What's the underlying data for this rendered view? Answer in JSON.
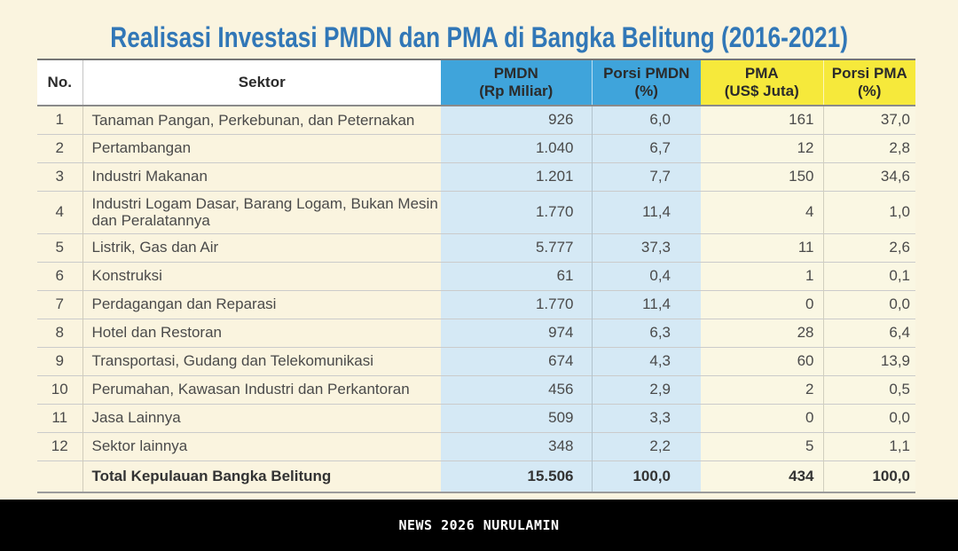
{
  "title": "Realisasi Investasi PMDN dan PMA di Bangka Belitung (2016-2021)",
  "chart_data": {
    "type": "table",
    "columns": [
      {
        "label": "No."
      },
      {
        "label": "Sektor"
      },
      {
        "label": "PMDN",
        "sub": "(Rp Miliar)"
      },
      {
        "label": "Porsi PMDN",
        "sub": "(%)"
      },
      {
        "label": "PMA",
        "sub": "(US$ Juta)"
      },
      {
        "label": "Porsi PMA",
        "sub": "(%)"
      }
    ],
    "rows": [
      {
        "no": "1",
        "sektor": "Tanaman Pangan, Perkebunan, dan Peternakan",
        "pmdn": "926",
        "porsi_pmdn": "6,0",
        "pma": "161",
        "porsi_pma": "37,0"
      },
      {
        "no": "2",
        "sektor": "Pertambangan",
        "pmdn": "1.040",
        "porsi_pmdn": "6,7",
        "pma": "12",
        "porsi_pma": "2,8"
      },
      {
        "no": "3",
        "sektor": "Industri Makanan",
        "pmdn": "1.201",
        "porsi_pmdn": "7,7",
        "pma": "150",
        "porsi_pma": "34,6"
      },
      {
        "no": "4",
        "sektor": "Industri Logam Dasar, Barang Logam, Bukan Mesin dan Peralatannya",
        "pmdn": "1.770",
        "porsi_pmdn": "11,4",
        "pma": "4",
        "porsi_pma": "1,0"
      },
      {
        "no": "5",
        "sektor": "Listrik, Gas dan Air",
        "pmdn": "5.777",
        "porsi_pmdn": "37,3",
        "pma": "11",
        "porsi_pma": "2,6"
      },
      {
        "no": "6",
        "sektor": "Konstruksi",
        "pmdn": "61",
        "porsi_pmdn": "0,4",
        "pma": "1",
        "porsi_pma": "0,1"
      },
      {
        "no": "7",
        "sektor": "Perdagangan dan Reparasi",
        "pmdn": "1.770",
        "porsi_pmdn": "11,4",
        "pma": "0",
        "porsi_pma": "0,0"
      },
      {
        "no": "8",
        "sektor": "Hotel dan Restoran",
        "pmdn": "974",
        "porsi_pmdn": "6,3",
        "pma": "28",
        "porsi_pma": "6,4"
      },
      {
        "no": "9",
        "sektor": "Transportasi, Gudang dan Telekomunikasi",
        "pmdn": "674",
        "porsi_pmdn": "4,3",
        "pma": "60",
        "porsi_pma": "13,9"
      },
      {
        "no": "10",
        "sektor": "Perumahan, Kawasan Industri dan Perkantoran",
        "pmdn": "456",
        "porsi_pmdn": "2,9",
        "pma": "2",
        "porsi_pma": "0,5"
      },
      {
        "no": "11",
        "sektor": "Jasa Lainnya",
        "pmdn": "509",
        "porsi_pmdn": "3,3",
        "pma": "0",
        "porsi_pma": "0,0"
      },
      {
        "no": "12",
        "sektor": "Sektor lainnya",
        "pmdn": "348",
        "porsi_pmdn": "2,2",
        "pma": "5",
        "porsi_pma": "1,1"
      }
    ],
    "total": {
      "sektor": "Total Kepulauan Bangka Belitung",
      "pmdn": "15.506",
      "porsi_pmdn": "100,0",
      "pma": "434",
      "porsi_pma": "100,0"
    }
  },
  "footer": {
    "text": "NEWS 2026 NURULAMIN"
  },
  "colors": {
    "page_bg": "#FAF4DF",
    "title_blue": "#3177B7",
    "header_blue": "#3FA4DB",
    "header_yellow": "#F6E93B",
    "cell_blue": "#D5E9F5",
    "cell_cream": "#FAF7E3",
    "footer_bg": "#000000",
    "footer_text": "#FFFFFF"
  }
}
